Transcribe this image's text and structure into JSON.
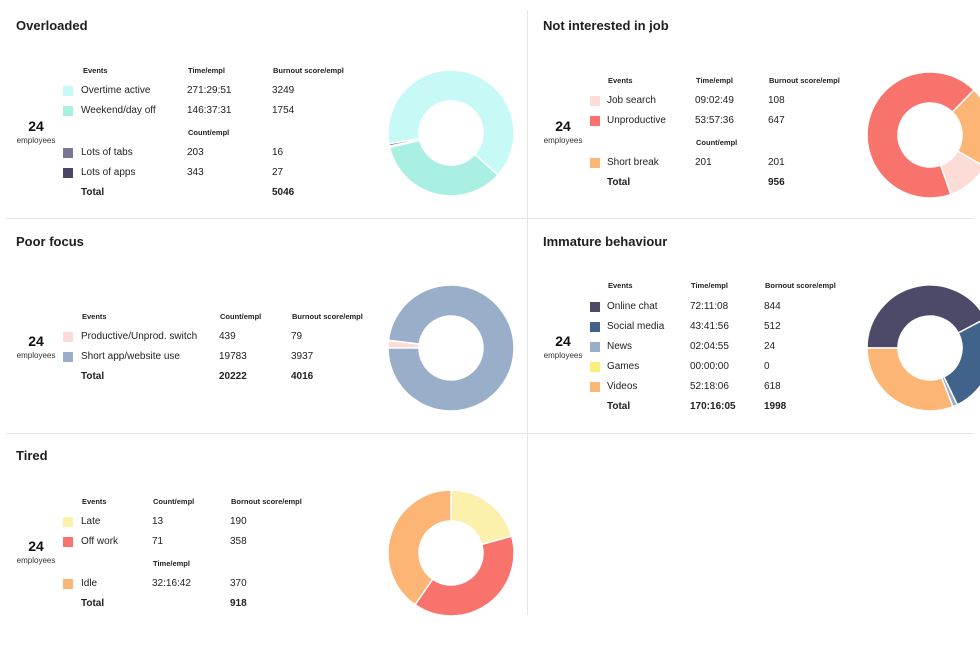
{
  "colors": {
    "overtime_active": "#c7f9f7",
    "weekend_day_off": "#aaf0e2",
    "lots_of_tabs": "#7a7694",
    "lots_of_apps": "#4a4562",
    "job_search": "#fcdcd6",
    "unproductive": "#f7736b",
    "short_break": "#fcb574",
    "prod_switch": "#fcdcd6",
    "short_app_use": "#98aec9",
    "online_chat": "#4c4a68",
    "social_media": "#41628a",
    "news": "#98aec9",
    "games": "#fcee7a",
    "videos": "#fcb574",
    "late": "#fcf0ad",
    "off_work": "#f7736b",
    "idle": "#fcb574"
  },
  "panels": {
    "overloaded": {
      "title": "Overloaded",
      "employees": "24",
      "employees_label": "employees",
      "headers": {
        "events": "Events",
        "col1": "Time/empl",
        "col1b": "Count/empl",
        "col2": "Burnout score/empl"
      },
      "rows": [
        {
          "label": "Overtime active",
          "v1": "271:29:51",
          "v2": "3249",
          "color": "#c7f9f7"
        },
        {
          "label": "Weekend/day off",
          "v1": "146:37:31",
          "v2": "1754",
          "color": "#aaf0e2"
        },
        {
          "label": "Lots of tabs",
          "v1": "203",
          "v2": "16",
          "color": "#7a7694"
        },
        {
          "label": "Lots of apps",
          "v1": "343",
          "v2": "27",
          "color": "#4a4562"
        }
      ],
      "total": {
        "label": "Total",
        "v1": "",
        "v2": "5046"
      }
    },
    "not_interested": {
      "title": "Not interested in job",
      "employees": "24",
      "employees_label": "employees",
      "headers": {
        "events": "Events",
        "col1": "Time/empl",
        "col1b": "Count/empl",
        "col2": "Burnout score/empl"
      },
      "rows": [
        {
          "label": "Job search",
          "v1": "09:02:49",
          "v2": "108",
          "color": "#fcdcd6"
        },
        {
          "label": "Unproductive",
          "v1": "53:57:36",
          "v2": "647",
          "color": "#f7736b"
        },
        {
          "label": "Short break",
          "v1": "201",
          "v2": "201",
          "color": "#fcb574"
        }
      ],
      "total": {
        "label": "Total",
        "v1": "",
        "v2": "956"
      }
    },
    "poor_focus": {
      "title": "Poor focus",
      "employees": "24",
      "employees_label": "employees",
      "headers": {
        "events": "Events",
        "col1": "Count/empl",
        "col2": "Burnout score/empl"
      },
      "rows": [
        {
          "label": "Productive/Unprod. switch",
          "v1": "439",
          "v2": "79",
          "color": "#fcdcd6"
        },
        {
          "label": "Short app/website use",
          "v1": "19783",
          "v2": "3937",
          "color": "#98aec9"
        }
      ],
      "total": {
        "label": "Total",
        "v1": "20222",
        "v2": "4016"
      }
    },
    "immature": {
      "title": "Immature behaviour",
      "employees": "24",
      "employees_label": "employees",
      "headers": {
        "events": "Events",
        "col1": "Time/empl",
        "col2": "Bornout score/empl"
      },
      "rows": [
        {
          "label": "Online chat",
          "v1": "72:11:08",
          "v2": "844",
          "color": "#4c4a68"
        },
        {
          "label": "Social media",
          "v1": "43:41:56",
          "v2": "512",
          "color": "#41628a"
        },
        {
          "label": "News",
          "v1": "02:04:55",
          "v2": "24",
          "color": "#98aec9"
        },
        {
          "label": "Games",
          "v1": "00:00:00",
          "v2": "0",
          "color": "#fcee7a"
        },
        {
          "label": "Videos",
          "v1": "52:18:06",
          "v2": "618",
          "color": "#fcb574"
        }
      ],
      "total": {
        "label": "Total",
        "v1": "170:16:05",
        "v2": "1998"
      }
    },
    "tired": {
      "title": "Tired",
      "employees": "24",
      "employees_label": "employees",
      "headers": {
        "events": "Events",
        "col1": "Count/empl",
        "col1b": "Time/empl",
        "col2": "Bornout score/empl"
      },
      "rows": [
        {
          "label": "Late",
          "v1": "13",
          "v2": "190",
          "color": "#fcf0ad"
        },
        {
          "label": "Off work",
          "v1": "71",
          "v2": "358",
          "color": "#f7736b"
        },
        {
          "label": "Idle",
          "v1": "32:16:42",
          "v2": "370",
          "color": "#fcb574"
        }
      ],
      "total": {
        "label": "Total",
        "v1": "",
        "v2": "918"
      }
    }
  },
  "chart_data": [
    {
      "type": "pie",
      "panel": "overloaded",
      "categories": [
        "Overtime active",
        "Weekend/day off",
        "Lots of tabs",
        "Lots of apps"
      ],
      "values": [
        3249,
        1754,
        16,
        27
      ],
      "colors": [
        "#c7f9f7",
        "#aaf0e2",
        "#7a7694",
        "#4a4562"
      ]
    },
    {
      "type": "pie",
      "panel": "not_interested",
      "categories": [
        "Job search",
        "Unproductive",
        "Short break"
      ],
      "values": [
        108,
        647,
        201
      ],
      "colors": [
        "#fcdcd6",
        "#f7736b",
        "#fcb574"
      ]
    },
    {
      "type": "pie",
      "panel": "poor_focus",
      "categories": [
        "Productive/Unprod. switch",
        "Short app/website use"
      ],
      "values": [
        79,
        3937
      ],
      "colors": [
        "#fcdcd6",
        "#98aec9"
      ]
    },
    {
      "type": "pie",
      "panel": "immature",
      "categories": [
        "Online chat",
        "Social media",
        "News",
        "Games",
        "Videos"
      ],
      "values": [
        844,
        512,
        24,
        0,
        618
      ],
      "colors": [
        "#4c4a68",
        "#41628a",
        "#98aec9",
        "#fcee7a",
        "#fcb574"
      ]
    },
    {
      "type": "pie",
      "panel": "tired",
      "categories": [
        "Late",
        "Off work",
        "Idle"
      ],
      "values": [
        190,
        358,
        370
      ],
      "colors": [
        "#fcf0ad",
        "#f7736b",
        "#fcb574"
      ]
    }
  ]
}
